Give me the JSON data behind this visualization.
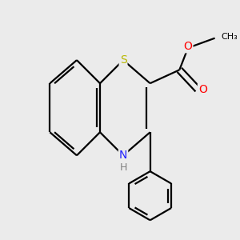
{
  "background_color": "#ebebeb",
  "atom_colors": {
    "S": "#b8b800",
    "N": "#2020ff",
    "O": "#ff0000",
    "C": "#000000",
    "H": "#808080"
  },
  "bond_color": "#000000",
  "bond_width": 1.6,
  "figsize": [
    3.0,
    3.0
  ],
  "dpi": 100,
  "xlim": [
    -1.6,
    2.0
  ],
  "ylim": [
    -1.9,
    1.5
  ]
}
